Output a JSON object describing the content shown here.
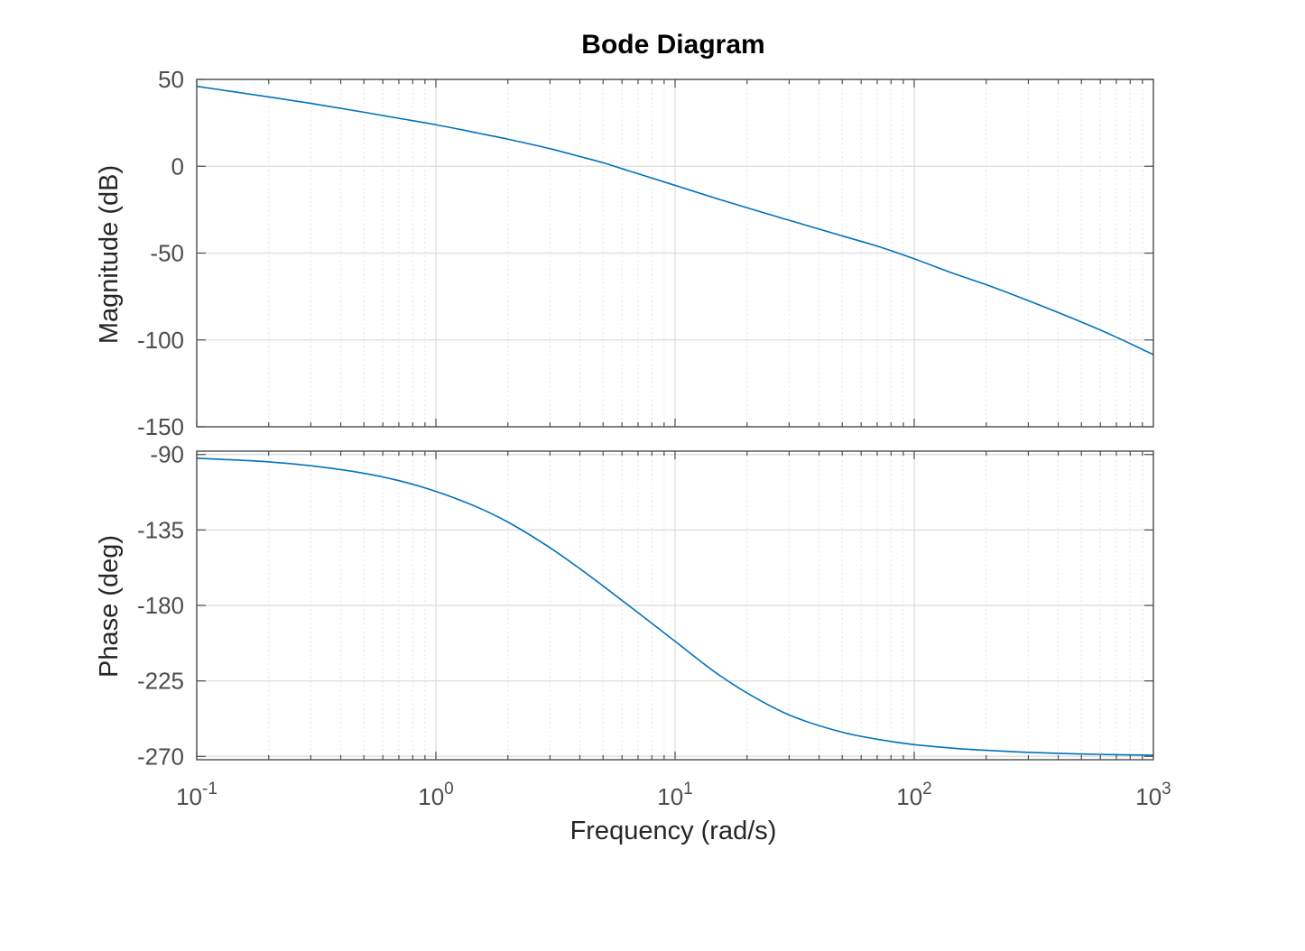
{
  "chart_data": [
    {
      "type": "line",
      "title": "Bode Diagram",
      "xlabel": "Frequency  (rad/s)",
      "ylabel": "Magnitude (dB)",
      "xscale": "log",
      "xlim": [
        0.1,
        1000
      ],
      "ylim": [
        -150,
        50
      ],
      "yticks": [
        50,
        0,
        -50,
        -100,
        -150
      ],
      "grid": true,
      "series": [
        {
          "x": [
            0.1,
            0.2,
            0.3,
            0.5,
            0.7,
            1,
            1.5,
            2,
            3,
            4,
            5,
            6,
            7,
            10,
            15,
            20,
            30,
            50,
            70,
            100,
            150,
            200,
            300,
            500,
            700,
            1000
          ],
          "y": [
            46,
            39.9,
            36.2,
            31.1,
            27.6,
            23.9,
            19.1,
            15.6,
            10.1,
            5.6,
            2,
            -1.4,
            -4.3,
            -11,
            -18.7,
            -23.9,
            -31.1,
            -40.1,
            -46,
            -53.3,
            -62.3,
            -68.2,
            -77.4,
            -89.7,
            -98.4,
            -108.5
          ]
        }
      ],
      "xticks": [
        {
          "base": "10",
          "exp": "-1"
        },
        {
          "base": "10",
          "exp": "0"
        },
        {
          "base": "10",
          "exp": "1"
        },
        {
          "base": "10",
          "exp": "2"
        },
        {
          "base": "10",
          "exp": "3"
        }
      ]
    },
    {
      "type": "line",
      "title": "",
      "xlabel": "Frequency  (rad/s)",
      "ylabel": "Phase (deg)",
      "xscale": "log",
      "xlim": [
        0.1,
        1000
      ],
      "ylim": [
        -272,
        -88
      ],
      "yticks": [
        -90,
        -135,
        -180,
        -225,
        -270
      ],
      "grid": true,
      "series": [
        {
          "x": [
            0.1,
            0.2,
            0.3,
            0.5,
            0.7,
            1,
            1.5,
            2,
            3,
            4,
            5,
            7,
            10,
            15,
            20,
            30,
            50,
            70,
            100,
            150,
            200,
            300,
            500,
            700,
            1000
          ],
          "y": [
            -92.2,
            -94.4,
            -96.7,
            -101.2,
            -105.6,
            -112,
            -121.6,
            -130.3,
            -145.6,
            -158.1,
            -168.4,
            -184.3,
            -201.4,
            -220.7,
            -232.2,
            -245.3,
            -255.6,
            -259.8,
            -263,
            -265.3,
            -266.4,
            -267.6,
            -268.6,
            -269,
            -269.3
          ]
        }
      ],
      "xticks": [
        {
          "base": "10",
          "exp": "-1"
        },
        {
          "base": "10",
          "exp": "0"
        },
        {
          "base": "10",
          "exp": "1"
        },
        {
          "base": "10",
          "exp": "2"
        },
        {
          "base": "10",
          "exp": "3"
        }
      ]
    }
  ]
}
